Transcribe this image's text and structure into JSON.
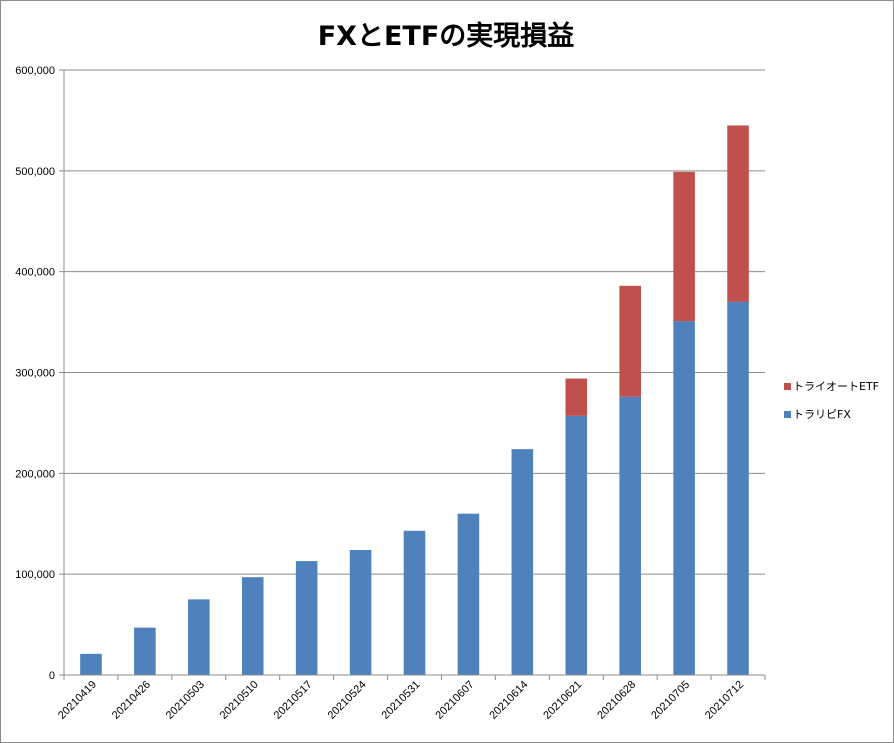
{
  "chart_data": {
    "type": "bar",
    "stacked": true,
    "title": "FXとETFの実現損益",
    "xlabel": "",
    "ylabel": "",
    "ylim": [
      0,
      600000
    ],
    "yticks": [
      0,
      100000,
      200000,
      300000,
      400000,
      500000,
      600000
    ],
    "ytick_labels": [
      "0",
      "100,000",
      "200,000",
      "300,000",
      "400,000",
      "500,000",
      "600,000"
    ],
    "grid": true,
    "legend_position": "right",
    "categories": [
      "20210419",
      "20210426",
      "20210503",
      "20210510",
      "20210517",
      "20210524",
      "20210531",
      "20210607",
      "20210614",
      "20210621",
      "20210628",
      "20210705",
      "20210712"
    ],
    "series": [
      {
        "name": "トラリピFX",
        "color": "#4f81bd",
        "values": [
          21000,
          47000,
          75000,
          97000,
          113000,
          124000,
          143000,
          160000,
          224000,
          257000,
          276000,
          351000,
          370000
        ]
      },
      {
        "name": "トライオートETF",
        "color": "#c0504d",
        "values": [
          0,
          0,
          0,
          0,
          0,
          0,
          0,
          0,
          0,
          37000,
          110000,
          148000,
          175000
        ]
      }
    ]
  }
}
